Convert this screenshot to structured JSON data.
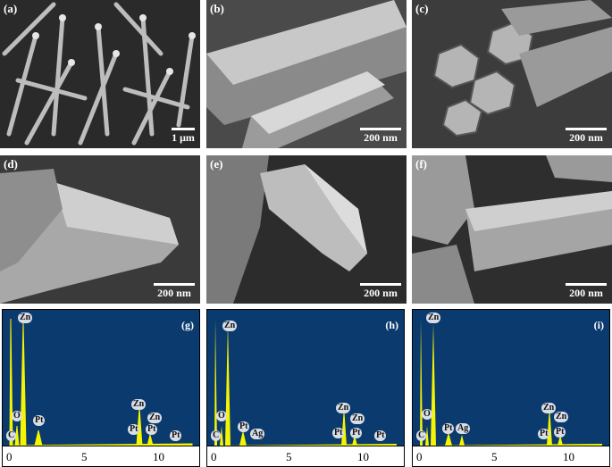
{
  "sem_panels": [
    {
      "label": "(a)",
      "scale": "1 μm"
    },
    {
      "label": "(b)",
      "scale": "200 nm"
    },
    {
      "label": "(c)",
      "scale": "200 nm"
    },
    {
      "label": "(d)",
      "scale": "200 nm"
    },
    {
      "label": "(e)",
      "scale": "200 nm"
    },
    {
      "label": "(f)",
      "scale": "200 nm"
    }
  ],
  "eds_panels": [
    {
      "label": "(g)",
      "ticks": [
        "0",
        "5",
        "10"
      ],
      "peaks": [
        "C",
        "O",
        "Zn",
        "Pt",
        "Zn",
        "Pt",
        "Pt",
        "Zn",
        "Pt"
      ]
    },
    {
      "label": "(h)",
      "ticks": [
        "0",
        "5",
        "10"
      ],
      "peaks": [
        "C",
        "O",
        "Zn",
        "Pt",
        "Ag",
        "Zn",
        "Pt",
        "Zn",
        "Pt",
        "Pt"
      ]
    },
    {
      "label": "(i)",
      "ticks": [
        "0",
        "5",
        "10"
      ],
      "peaks": [
        "C",
        "O",
        "Zn",
        "Pt",
        "Ag",
        "Zn",
        "Pt",
        "Zn",
        "Pt"
      ]
    }
  ]
}
